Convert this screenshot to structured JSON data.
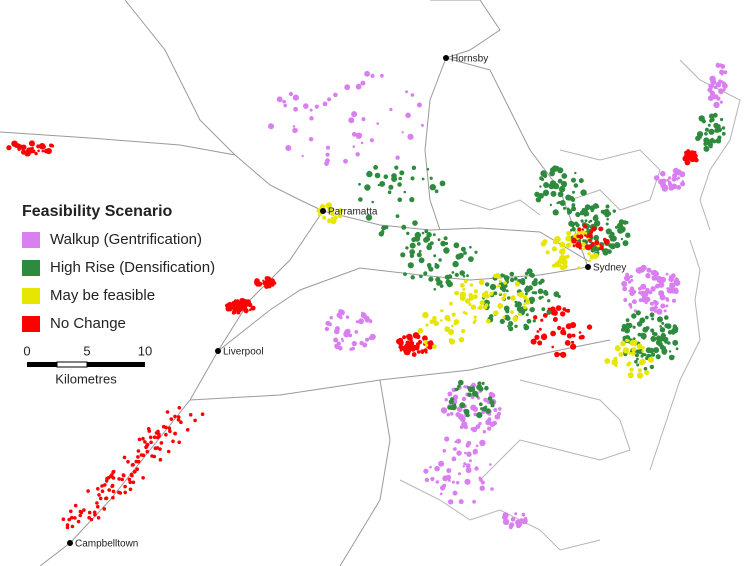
{
  "legend": {
    "title": "Feasibility Scenario",
    "items": [
      {
        "label": "Walkup (Gentrification)",
        "color": "#d97ff0"
      },
      {
        "label": "High Rise (Densification)",
        "color": "#2e8b3e"
      },
      {
        "label": "May be feasible",
        "color": "#e6e600"
      },
      {
        "label": "No Change",
        "color": "#ff0000"
      }
    ]
  },
  "scale_bar": {
    "ticks": [
      "0",
      "5",
      "10"
    ],
    "unit": "Kilometres"
  },
  "places": [
    "Hornsby",
    "Parramatta",
    "Sydney",
    "Liverpool",
    "Campbelltown"
  ]
}
